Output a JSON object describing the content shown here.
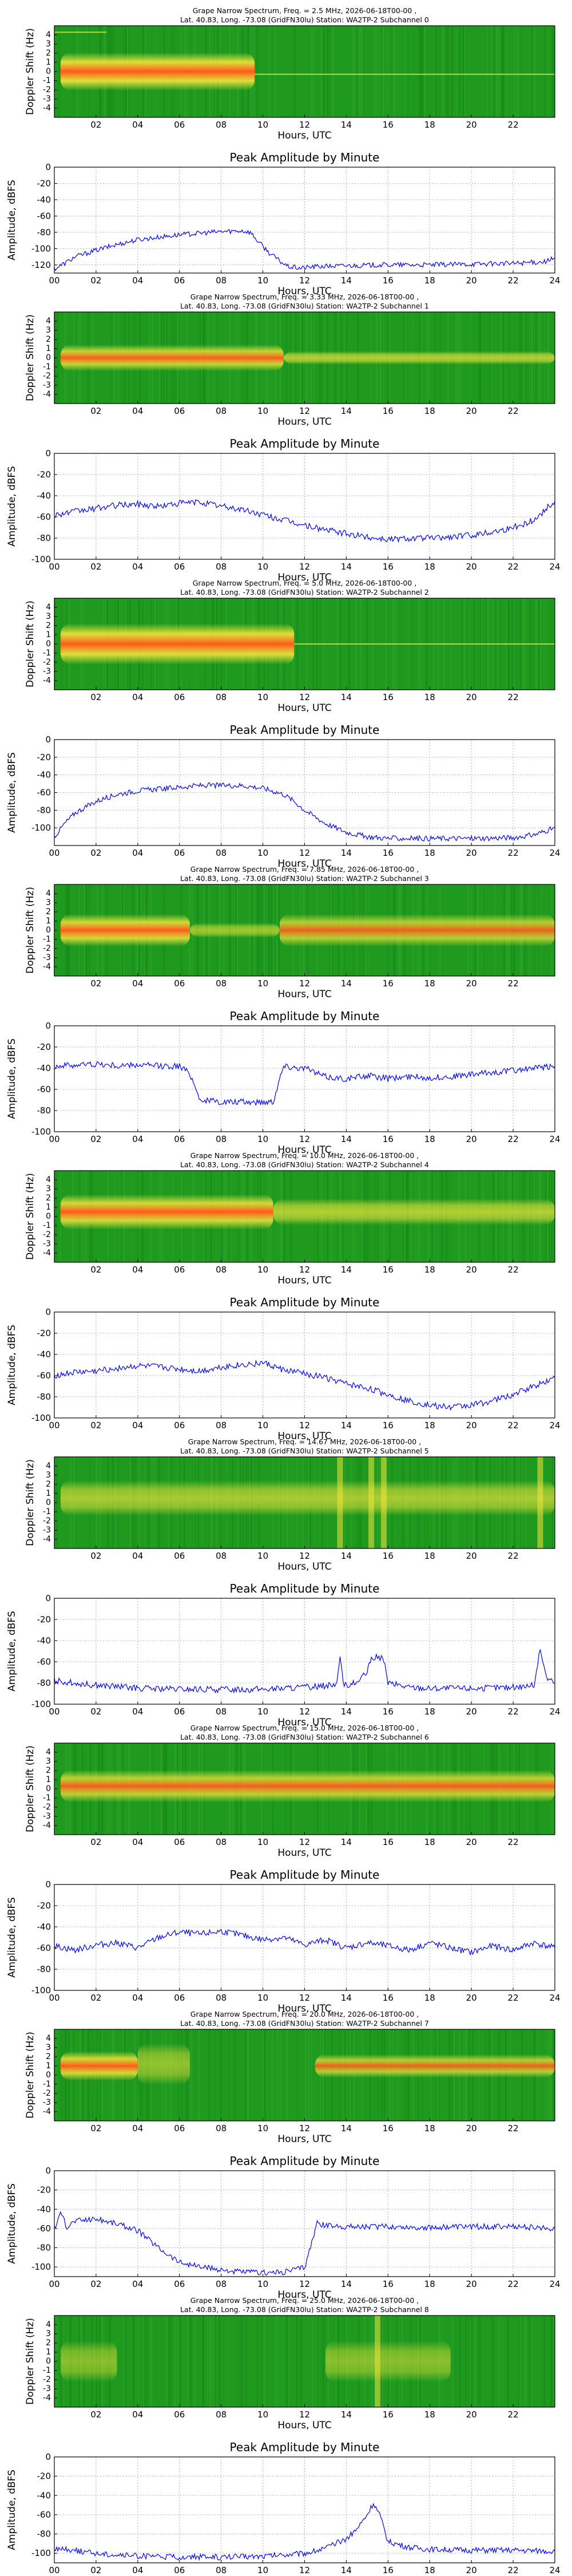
{
  "colors": {
    "line": "#0000ff",
    "spec_bg": "#1f9a1f",
    "spec_hot": "#ff5a1a",
    "spec_mid": "#f2e63c"
  },
  "common": {
    "hour_ticks": [
      "02",
      "04",
      "06",
      "08",
      "10",
      "12",
      "14",
      "16",
      "18",
      "20",
      "22"
    ],
    "amp_x_ticks": [
      "00",
      "02",
      "04",
      "06",
      "08",
      "10",
      "12",
      "14",
      "16",
      "18",
      "20",
      "22",
      "24"
    ],
    "spec_ylabel": "Doppler Shift (Hz)",
    "spec_yticks": [
      "4",
      "3",
      "2",
      "1",
      "0",
      "-1",
      "-2",
      "-3",
      "-4"
    ],
    "xlabel": "Hours, UTC",
    "amp_title": "Peak Amplitude by Minute",
    "amp_ylabel": "Amplitude, dBFS"
  },
  "chart_data": [
    {
      "type": "heatmap",
      "title_line1": "Grape Narrow Spectrum, Freq. = 2.5 MHz, 2026-06-18T00-00 ,",
      "title_line2": "Lat.  40.83, Long. -73.08 (GridFN30lu) Station: WA2TP-2 Subchannel 0",
      "xlabel": "Hours, UTC",
      "ylabel": "Doppler Shift (Hz)",
      "x_range": [
        0,
        24
      ],
      "y_range": [
        -5,
        5
      ],
      "blobs": [
        {
          "x0": 0.3,
          "x1": 9.6,
          "y": 0,
          "halfwidth": 1.3,
          "intensity": 1.0
        }
      ],
      "thin_traces": [
        {
          "x0": 9.6,
          "x1": 24,
          "y": -0.3
        },
        {
          "x0": 0,
          "x1": 2.5,
          "y": 4.3
        }
      ]
    },
    {
      "type": "line",
      "title": "Peak Amplitude by Minute",
      "xlabel": "Hours, UTC",
      "ylabel": "Amplitude, dBFS",
      "xlim": [
        0,
        24
      ],
      "ylim": [
        -130,
        0
      ],
      "yticks": [
        0,
        -20,
        -40,
        -60,
        -80,
        -100,
        -120
      ],
      "x": [
        0,
        0.5,
        1,
        2,
        3,
        4,
        5,
        6,
        7,
        8,
        9,
        9.4,
        9.8,
        10.3,
        10.8,
        11.2,
        11.8,
        12.5,
        14,
        16,
        18,
        20,
        22,
        23.5,
        24
      ],
      "values": [
        -125,
        -118,
        -110,
        -102,
        -95,
        -89,
        -86,
        -83,
        -81,
        -79,
        -78,
        -80,
        -92,
        -105,
        -115,
        -122,
        -124,
        -122,
        -121,
        -120,
        -120,
        -119,
        -118,
        -116,
        -112
      ]
    },
    {
      "type": "heatmap",
      "title_line1": "Grape Narrow Spectrum, Freq. = 3.33 MHz, 2026-06-18T00-00 ,",
      "title_line2": "Lat.  40.83, Long. -73.08 (GridFN30lu) Station: WA2TP-2 Subchannel 1",
      "xlabel": "Hours, UTC",
      "ylabel": "Doppler Shift (Hz)",
      "x_range": [
        0,
        24
      ],
      "y_range": [
        -5,
        5
      ],
      "blobs": [
        {
          "x0": 0.3,
          "x1": 11,
          "y": 0,
          "halfwidth": 0.9,
          "intensity": 0.8
        },
        {
          "x0": 11,
          "x1": 24,
          "y": 0,
          "halfwidth": 0.45,
          "intensity": 0.5
        }
      ],
      "thin_traces": []
    },
    {
      "type": "line",
      "title": "Peak Amplitude by Minute",
      "xlabel": "Hours, UTC",
      "ylabel": "Amplitude, dBFS",
      "xlim": [
        0,
        24
      ],
      "ylim": [
        -100,
        0
      ],
      "yticks": [
        0,
        -20,
        -40,
        -60,
        -80,
        -100
      ],
      "x": [
        0,
        1,
        2,
        3,
        4,
        5,
        6,
        7,
        8,
        9,
        10,
        11,
        12,
        13,
        14,
        15,
        16,
        17,
        18,
        19,
        20,
        21,
        22,
        23,
        24
      ],
      "values": [
        -58,
        -55,
        -52,
        -49,
        -48,
        -50,
        -47,
        -46,
        -50,
        -53,
        -58,
        -63,
        -68,
        -72,
        -76,
        -79,
        -81,
        -80,
        -80,
        -79,
        -77,
        -74,
        -70,
        -63,
        -45
      ]
    },
    {
      "type": "heatmap",
      "title_line1": "Grape Narrow Spectrum, Freq. = 5.0 MHz, 2026-06-18T00-00 ,",
      "title_line2": "Lat.  40.83, Long. -73.08 (GridFN30lu) Station: WA2TP-2 Subchannel 2",
      "xlabel": "Hours, UTC",
      "ylabel": "Doppler Shift (Hz)",
      "x_range": [
        0,
        24
      ],
      "y_range": [
        -5,
        5
      ],
      "blobs": [
        {
          "x0": 0.3,
          "x1": 11.5,
          "y": 0,
          "halfwidth": 1.4,
          "intensity": 1.0
        }
      ],
      "thin_traces": [
        {
          "x0": 11.5,
          "x1": 24,
          "y": 0
        }
      ]
    },
    {
      "type": "line",
      "title": "Peak Amplitude by Minute",
      "xlabel": "Hours, UTC",
      "ylabel": "Amplitude, dBFS",
      "xlim": [
        0,
        24
      ],
      "ylim": [
        -120,
        0
      ],
      "yticks": [
        0,
        -20,
        -40,
        -60,
        -80,
        -100
      ],
      "x": [
        0,
        0.5,
        1,
        2,
        3,
        4,
        5,
        6,
        7,
        8,
        9,
        10,
        11,
        11.5,
        12,
        13,
        14,
        15,
        16,
        18,
        20,
        22,
        23,
        24
      ],
      "values": [
        -110,
        -95,
        -83,
        -70,
        -62,
        -58,
        -56,
        -54,
        -52,
        -52,
        -52,
        -55,
        -62,
        -70,
        -80,
        -95,
        -105,
        -110,
        -112,
        -112,
        -112,
        -111,
        -108,
        -100
      ]
    },
    {
      "type": "heatmap",
      "title_line1": "Grape Narrow Spectrum, Freq. = 7.85 MHz, 2026-06-18T00-00 ,",
      "title_line2": "Lat.  40.83, Long. -73.08 (GridFN30lu) Station: WA2TP-2 Subchannel 3",
      "xlabel": "Hours, UTC",
      "ylabel": "Doppler Shift (Hz)",
      "x_range": [
        0,
        24
      ],
      "y_range": [
        -5,
        5
      ],
      "blobs": [
        {
          "x0": 0.3,
          "x1": 6.5,
          "y": 0,
          "halfwidth": 1.1,
          "intensity": 0.9
        },
        {
          "x0": 6.5,
          "x1": 10.8,
          "y": 0,
          "halfwidth": 0.5,
          "intensity": 0.4
        },
        {
          "x0": 10.8,
          "x1": 24,
          "y": 0,
          "halfwidth": 1.1,
          "intensity": 0.7
        }
      ],
      "thin_traces": []
    },
    {
      "type": "line",
      "title": "Peak Amplitude by Minute",
      "xlabel": "Hours, UTC",
      "ylabel": "Amplitude, dBFS",
      "xlim": [
        0,
        24
      ],
      "ylim": [
        -100,
        0
      ],
      "yticks": [
        0,
        -20,
        -40,
        -60,
        -80,
        -100
      ],
      "x": [
        0,
        1,
        2,
        3,
        4,
        5,
        6,
        6.5,
        7,
        8,
        9,
        10,
        10.5,
        10.8,
        11,
        12,
        13,
        14,
        15,
        16,
        17,
        18,
        19,
        20,
        21,
        22,
        23,
        24
      ],
      "values": [
        -38,
        -37,
        -36,
        -38,
        -37,
        -38,
        -38,
        -45,
        -70,
        -72,
        -72,
        -72,
        -71,
        -50,
        -38,
        -40,
        -48,
        -50,
        -47,
        -50,
        -48,
        -49,
        -48,
        -46,
        -44,
        -42,
        -40,
        -38
      ]
    },
    {
      "type": "heatmap",
      "title_line1": "Grape Narrow Spectrum, Freq. = 10.0 MHz, 2026-06-18T00-00 ,",
      "title_line2": "Lat.  40.83, Long. -73.08 (GridFN30lu) Station: WA2TP-2 Subchannel 4",
      "xlabel": "Hours, UTC",
      "ylabel": "Doppler Shift (Hz)",
      "x_range": [
        0,
        24
      ],
      "y_range": [
        -5,
        5
      ],
      "blobs": [
        {
          "x0": 0.3,
          "x1": 10.5,
          "y": 0.5,
          "halfwidth": 1.2,
          "intensity": 0.9
        },
        {
          "x0": 10.5,
          "x1": 24,
          "y": 0.5,
          "halfwidth": 0.9,
          "intensity": 0.5
        }
      ],
      "thin_traces": []
    },
    {
      "type": "line",
      "title": "Peak Amplitude by Minute",
      "xlabel": "Hours, UTC",
      "ylabel": "Amplitude, dBFS",
      "xlim": [
        0,
        24
      ],
      "ylim": [
        -100,
        0
      ],
      "yticks": [
        0,
        -20,
        -40,
        -60,
        -80,
        -100
      ],
      "x": [
        0,
        1,
        2,
        3,
        4,
        5,
        6,
        7,
        8,
        9,
        10,
        11,
        12,
        13,
        14,
        15,
        16,
        17,
        18,
        19,
        20,
        21,
        22,
        23,
        24
      ],
      "values": [
        -60,
        -57,
        -56,
        -53,
        -51,
        -52,
        -54,
        -56,
        -52,
        -50,
        -48,
        -55,
        -58,
        -62,
        -68,
        -72,
        -78,
        -84,
        -88,
        -90,
        -88,
        -84,
        -78,
        -70,
        -62
      ]
    },
    {
      "type": "heatmap",
      "title_line1": "Grape Narrow Spectrum, Freq. = 14.67 MHz, 2026-06-18T00-00 ,",
      "title_line2": "Lat.  40.83, Long. -73.08 (GridFN30lu) Station: WA2TP-2 Subchannel 5",
      "xlabel": "Hours, UTC",
      "ylabel": "Doppler Shift (Hz)",
      "x_range": [
        0,
        24
      ],
      "y_range": [
        -5,
        5
      ],
      "blobs": [
        {
          "x0": 0.3,
          "x1": 24,
          "y": 0.5,
          "halfwidth": 1.2,
          "intensity": 0.45
        }
      ],
      "thin_traces": [],
      "vertical_bands": [
        13.7,
        15.2,
        15.8,
        23.3
      ]
    },
    {
      "type": "line",
      "title": "Peak Amplitude by Minute",
      "xlabel": "Hours, UTC",
      "ylabel": "Amplitude, dBFS",
      "xlim": [
        0,
        24
      ],
      "ylim": [
        -100,
        0
      ],
      "yticks": [
        0,
        -20,
        -40,
        -60,
        -80,
        -100
      ],
      "x": [
        0,
        1,
        2,
        4,
        6,
        8,
        10,
        12,
        13.5,
        13.7,
        13.9,
        14.5,
        15,
        15.2,
        15.5,
        15.8,
        16,
        17,
        18,
        20,
        22,
        23,
        23.3,
        23.6,
        24
      ],
      "values": [
        -78,
        -80,
        -82,
        -85,
        -86,
        -86,
        -86,
        -84,
        -82,
        -58,
        -82,
        -80,
        -70,
        -57,
        -55,
        -58,
        -80,
        -84,
        -85,
        -85,
        -84,
        -82,
        -48,
        -75,
        -80
      ]
    },
    {
      "type": "heatmap",
      "title_line1": "Grape Narrow Spectrum, Freq. = 15.0 MHz, 2026-06-18T00-00 ,",
      "title_line2": "Lat.  40.83, Long. -73.08 (GridFN30lu) Station: WA2TP-2 Subchannel 6",
      "xlabel": "Hours, UTC",
      "ylabel": "Doppler Shift (Hz)",
      "x_range": [
        0,
        24
      ],
      "y_range": [
        -5,
        5
      ],
      "blobs": [
        {
          "x0": 0.3,
          "x1": 24,
          "y": 0.3,
          "halfwidth": 1.1,
          "intensity": 0.75
        }
      ],
      "thin_traces": []
    },
    {
      "type": "line",
      "title": "Peak Amplitude by Minute",
      "xlabel": "Hours, UTC",
      "ylabel": "Amplitude, dBFS",
      "xlim": [
        0,
        24
      ],
      "ylim": [
        -100,
        0
      ],
      "yticks": [
        0,
        -20,
        -40,
        -60,
        -80,
        -100
      ],
      "x": [
        0,
        1,
        2,
        3,
        4,
        5,
        6,
        7,
        8,
        9,
        10,
        11,
        12,
        13,
        14,
        15,
        16,
        17,
        18,
        19,
        20,
        21,
        22,
        23,
        24
      ],
      "values": [
        -58,
        -62,
        -57,
        -55,
        -60,
        -50,
        -45,
        -47,
        -44,
        -48,
        -52,
        -50,
        -57,
        -52,
        -60,
        -55,
        -58,
        -62,
        -55,
        -60,
        -64,
        -58,
        -62,
        -55,
        -60
      ]
    },
    {
      "type": "heatmap",
      "title_line1": "Grape Narrow Spectrum, Freq. = 20.0 MHz, 2026-06-18T00-00 ,",
      "title_line2": "Lat.  40.83, Long. -73.08 (GridFN30lu) Station: WA2TP-2 Subchannel 7",
      "xlabel": "Hours, UTC",
      "ylabel": "Doppler Shift (Hz)",
      "x_range": [
        0,
        24
      ],
      "y_range": [
        -5,
        5
      ],
      "blobs": [
        {
          "x0": 0.3,
          "x1": 4.0,
          "y": 1.0,
          "halfwidth": 1.0,
          "intensity": 0.9
        },
        {
          "x0": 4.0,
          "x1": 6.5,
          "y": 1.2,
          "halfwidth": 1.4,
          "intensity": 0.35
        },
        {
          "x0": 12.5,
          "x1": 24,
          "y": 1.0,
          "halfwidth": 0.8,
          "intensity": 0.7
        }
      ],
      "thin_traces": []
    },
    {
      "type": "line",
      "title": "Peak Amplitude by Minute",
      "xlabel": "Hours, UTC",
      "ylabel": "Amplitude, dBFS",
      "xlim": [
        0,
        24
      ],
      "ylim": [
        -110,
        0
      ],
      "yticks": [
        0,
        -20,
        -40,
        -60,
        -80,
        -100
      ],
      "x": [
        0,
        0.3,
        0.6,
        1,
        2,
        3,
        4,
        5,
        6,
        7,
        8,
        9,
        10,
        11,
        12,
        12.4,
        12.6,
        13,
        14,
        16,
        18,
        20,
        22,
        24
      ],
      "values": [
        -60,
        -45,
        -58,
        -52,
        -50,
        -55,
        -62,
        -80,
        -95,
        -100,
        -103,
        -105,
        -106,
        -105,
        -100,
        -70,
        -55,
        -57,
        -58,
        -58,
        -59,
        -58,
        -58,
        -60
      ]
    },
    {
      "type": "heatmap",
      "title_line1": "Grape Narrow Spectrum, Freq. = 25.0 MHz, 2026-06-18T00-00 ,",
      "title_line2": "Lat.  40.83, Long. -73.08 (GridFN30lu) Station: WA2TP-2 Subchannel 8",
      "xlabel": "Hours, UTC",
      "ylabel": "Doppler Shift (Hz)",
      "x_range": [
        0,
        24
      ],
      "y_range": [
        -5,
        5
      ],
      "blobs": [
        {
          "x0": 0.3,
          "x1": 3.0,
          "y": 0,
          "halfwidth": 1.4,
          "intensity": 0.3
        },
        {
          "x0": 13.0,
          "x1": 19.0,
          "y": 0,
          "halfwidth": 1.4,
          "intensity": 0.3
        }
      ],
      "thin_traces": [],
      "vertical_bands": [
        15.5
      ]
    },
    {
      "type": "line",
      "title": "Peak Amplitude by Minute",
      "xlabel": "Hours, UTC",
      "ylabel": "Amplitude, dBFS",
      "xlim": [
        0,
        24
      ],
      "ylim": [
        -110,
        0
      ],
      "yticks": [
        0,
        -20,
        -40,
        -60,
        -80,
        -100
      ],
      "x": [
        0,
        1,
        2,
        4,
        6,
        8,
        10,
        12,
        13,
        14,
        14.5,
        15,
        15.3,
        15.6,
        16,
        17,
        18,
        20,
        22,
        24
      ],
      "values": [
        -95,
        -97,
        -100,
        -103,
        -104,
        -104,
        -103,
        -100,
        -95,
        -85,
        -75,
        -60,
        -48,
        -60,
        -88,
        -94,
        -96,
        -97,
        -97,
        -98
      ]
    }
  ]
}
